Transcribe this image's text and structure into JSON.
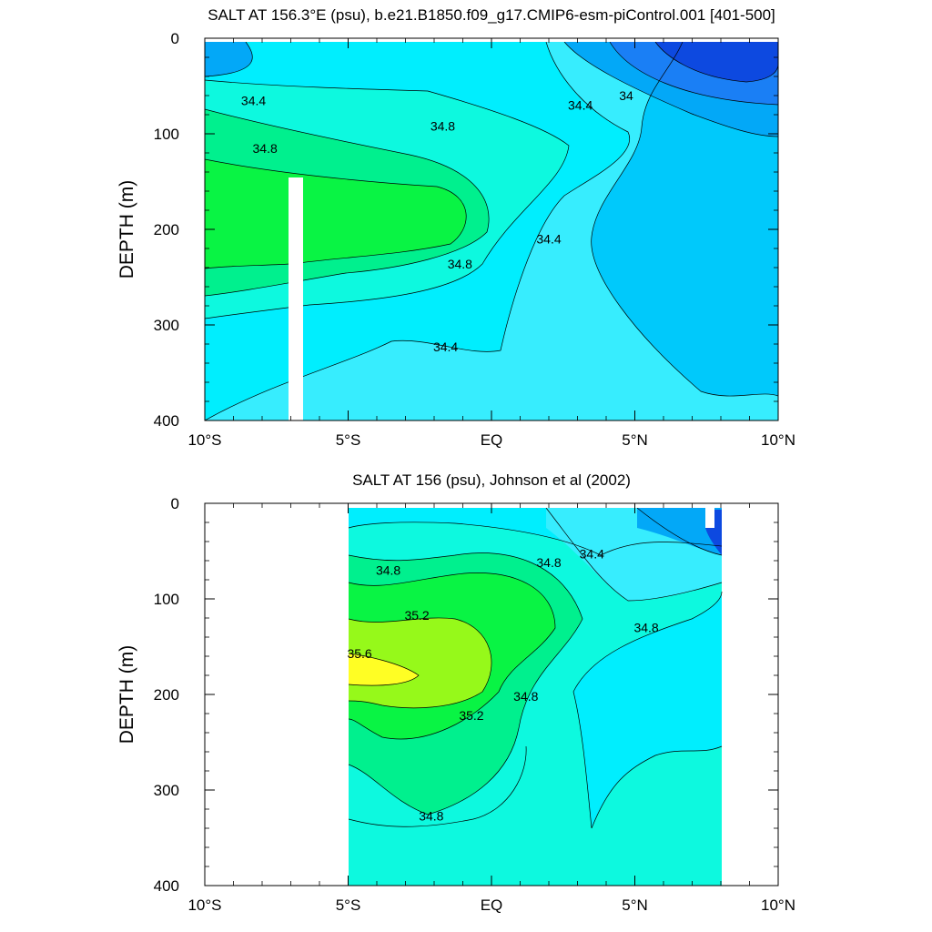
{
  "chart_data": [
    {
      "type": "contour",
      "title": "SALT AT 156.3°E (psu), b.e21.B1850.f09_g17.CMIP6-esm-piControl.001 [401-500]",
      "ylabel": "DEPTH (m)",
      "xlim": [
        -10,
        10
      ],
      "ylim": [
        400,
        0
      ],
      "x_ticks": [
        {
          "value": -10,
          "label": "10°S"
        },
        {
          "value": -5,
          "label": "5°S"
        },
        {
          "value": 0,
          "label": "EQ"
        },
        {
          "value": 5,
          "label": "5°N"
        },
        {
          "value": 10,
          "label": "10°N"
        }
      ],
      "y_ticks": [
        {
          "value": 0,
          "label": "0"
        },
        {
          "value": 100,
          "label": "100"
        },
        {
          "value": 200,
          "label": "200"
        },
        {
          "value": 300,
          "label": "300"
        },
        {
          "value": 400,
          "label": "400"
        }
      ],
      "contour_levels": [
        33.6,
        33.8,
        34,
        34.2,
        34.4,
        34.6,
        34.8,
        35,
        35.2
      ],
      "contour_labels": [
        {
          "text": "34.4",
          "x": -8.3,
          "y": 65
        },
        {
          "text": "34.8",
          "x": -7.9,
          "y": 115
        },
        {
          "text": "34.8",
          "x": -1.7,
          "y": 92
        },
        {
          "text": "34.8",
          "x": -1.1,
          "y": 236
        },
        {
          "text": "34.4",
          "x": 3.1,
          "y": 70
        },
        {
          "text": "34",
          "x": 4.7,
          "y": 60
        },
        {
          "text": "34.4",
          "x": 2.0,
          "y": 210
        },
        {
          "text": "34.4",
          "x": -1.6,
          "y": 323
        }
      ],
      "colors": [
        "#0d49e0",
        "#1a7ff5",
        "#03a8f7",
        "#00c9fb",
        "#00eefe",
        "#37edfe",
        "#0df9df",
        "#00f08e",
        "#09f444"
      ]
    },
    {
      "type": "contour",
      "title": "SALT AT 156 (psu), Johnson et al (2002)",
      "ylabel": "DEPTH (m)",
      "xlim": [
        -10,
        10
      ],
      "ylim": [
        400,
        0
      ],
      "x_ticks": [
        {
          "value": -10,
          "label": "10°S"
        },
        {
          "value": -5,
          "label": "5°S"
        },
        {
          "value": 0,
          "label": "EQ"
        },
        {
          "value": 5,
          "label": "5°N"
        },
        {
          "value": 10,
          "label": "10°N"
        }
      ],
      "y_ticks": [
        {
          "value": 0,
          "label": "0"
        },
        {
          "value": 100,
          "label": "100"
        },
        {
          "value": 200,
          "label": "200"
        },
        {
          "value": 300,
          "label": "300"
        },
        {
          "value": 400,
          "label": "400"
        }
      ],
      "contour_levels": [
        34,
        34.4,
        34.6,
        34.8,
        35,
        35.2,
        35.4,
        35.6
      ],
      "contour_labels": [
        {
          "text": "34.8",
          "x": -3.6,
          "y": 70
        },
        {
          "text": "35.2",
          "x": -2.6,
          "y": 117
        },
        {
          "text": "35.6",
          "x": -4.6,
          "y": 157
        },
        {
          "text": "35.2",
          "x": -0.7,
          "y": 222
        },
        {
          "text": "34.8",
          "x": 1.2,
          "y": 202
        },
        {
          "text": "34.8",
          "x": 2.0,
          "y": 62
        },
        {
          "text": "34.4",
          "x": 3.5,
          "y": 53
        },
        {
          "text": "34.8",
          "x": 5.4,
          "y": 130
        },
        {
          "text": "34.8",
          "x": -2.1,
          "y": 327
        }
      ],
      "colors": [
        "#0d49e0",
        "#03a8f7",
        "#37edfe",
        "#00eefe",
        "#0df9df",
        "#00f08e",
        "#09f444",
        "#96f91a",
        "#fffe24"
      ]
    }
  ]
}
